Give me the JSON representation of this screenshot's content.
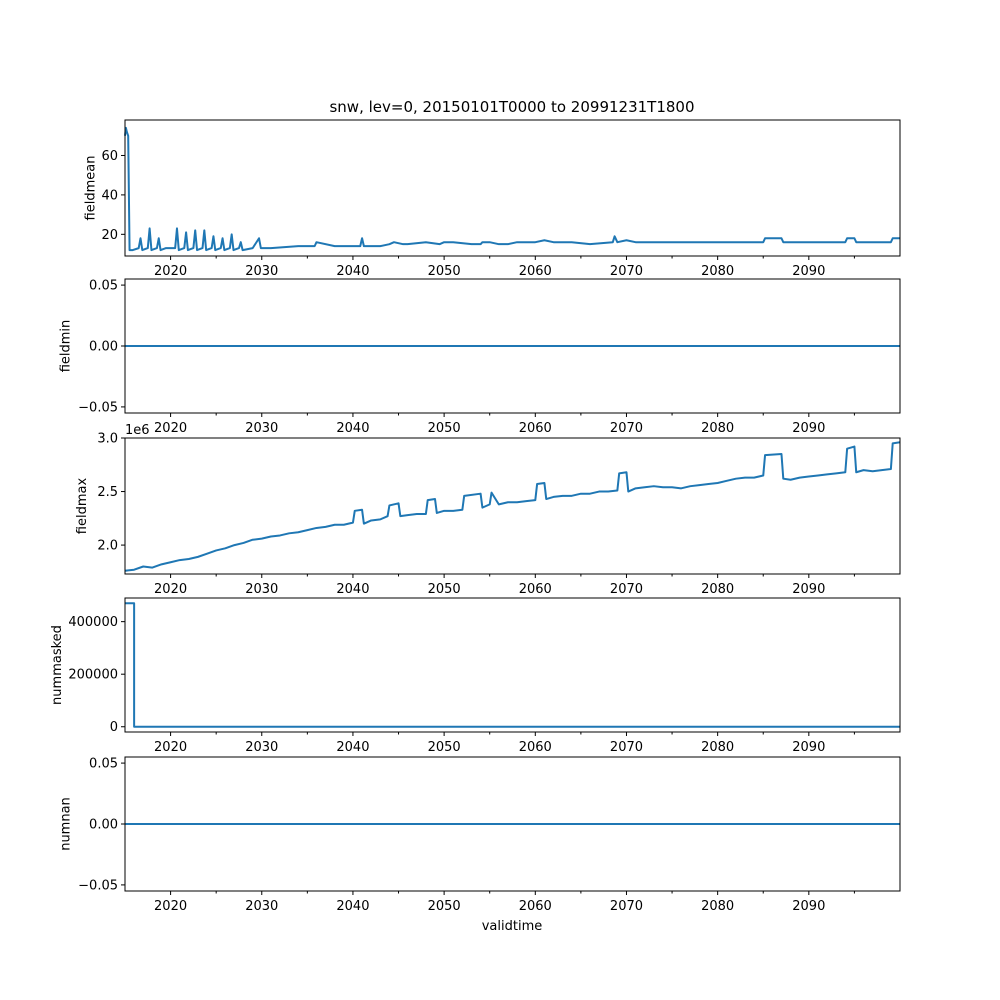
{
  "figure": {
    "title": "snw, lev=0, 20150101T0000 to 20991231T1800",
    "xlabel": "validtime"
  },
  "colors": {
    "line": "#1f77b4",
    "axes": "#000000"
  },
  "chart_data": [
    {
      "type": "line",
      "ylabel": "fieldmean",
      "xlim": [
        2015.0,
        2100.0
      ],
      "ylim": [
        9,
        78
      ],
      "xticks": [
        2020,
        2030,
        2040,
        2050,
        2060,
        2070,
        2080,
        2090
      ],
      "xticklabels": [
        "2020",
        "2030",
        "2040",
        "2050",
        "2060",
        "2070",
        "2080",
        "2090"
      ],
      "show_xticklabels": true,
      "yticks": [
        20,
        40,
        60
      ],
      "yticklabels": [
        "20",
        "40",
        "60"
      ],
      "offset_label": "",
      "x": [
        2015.0,
        2015.1,
        2015.2,
        2015.35,
        2015.5,
        2015.8,
        2015.85,
        2016.5,
        2016.7,
        2016.9,
        2017.5,
        2017.7,
        2017.9,
        2018.5,
        2018.7,
        2018.9,
        2019.5,
        2020.5,
        2020.7,
        2020.9,
        2021.5,
        2021.7,
        2021.9,
        2022.5,
        2022.7,
        2022.9,
        2023.5,
        2023.7,
        2023.9,
        2024.5,
        2024.7,
        2024.9,
        2025.5,
        2025.7,
        2025.9,
        2026.5,
        2026.7,
        2026.9,
        2027.5,
        2027.7,
        2027.9,
        2029,
        2029.7,
        2029.9,
        2031,
        2034,
        2035.8,
        2036,
        2038,
        2040.8,
        2041,
        2041.2,
        2042,
        2043,
        2044,
        2044.5,
        2045.5,
        2046,
        2048,
        2049.5,
        2050,
        2051,
        2053,
        2054,
        2054.2,
        2055,
        2056,
        2057,
        2058,
        2060,
        2061,
        2062,
        2064,
        2066,
        2068.5,
        2068.7,
        2069,
        2070,
        2071,
        2073,
        2075,
        2078,
        2082,
        2085,
        2085.2,
        2087,
        2087.2,
        2090,
        2094,
        2094.2,
        2095,
        2095.2,
        2097,
        2099,
        2099.2,
        2100
      ],
      "y": [
        70,
        74,
        72,
        70,
        12,
        12,
        12,
        13,
        18,
        12,
        13,
        23,
        12,
        13,
        18,
        12,
        13,
        13,
        23,
        12,
        13,
        21,
        12,
        13,
        22,
        12,
        13,
        22,
        12,
        13,
        19,
        12,
        13,
        18,
        12,
        13,
        20,
        12,
        13,
        16,
        12,
        13,
        18,
        13,
        13,
        14,
        14,
        16,
        14,
        14,
        18,
        14,
        14,
        14,
        15,
        16,
        15,
        15,
        16,
        15,
        16,
        16,
        15,
        15,
        16,
        16,
        15,
        15,
        16,
        16,
        17,
        16,
        16,
        15,
        16,
        19,
        16,
        17,
        16,
        16,
        16,
        16,
        16,
        16,
        18,
        18,
        16,
        16,
        16,
        18,
        18,
        16,
        16,
        16,
        18,
        18
      ]
    },
    {
      "type": "line",
      "ylabel": "fieldmin",
      "xlim": [
        2015.0,
        2100.0
      ],
      "ylim": [
        -0.055,
        0.055
      ],
      "xticks": [
        2020,
        2030,
        2040,
        2050,
        2060,
        2070,
        2080,
        2090
      ],
      "xticklabels": [
        "2020",
        "2030",
        "2040",
        "2050",
        "2060",
        "2070",
        "2080",
        "2090"
      ],
      "show_xticklabels": true,
      "yticks": [
        -0.05,
        0.0,
        0.05
      ],
      "yticklabels": [
        "−0.05",
        "0.00",
        "0.05"
      ],
      "offset_label": "",
      "x": [
        2015.0,
        2100.0
      ],
      "y": [
        0,
        0
      ]
    },
    {
      "type": "line",
      "ylabel": "fieldmax",
      "xlim": [
        2015.0,
        2100.0
      ],
      "ylim": [
        1.73,
        3.0
      ],
      "xticks": [
        2020,
        2030,
        2040,
        2050,
        2060,
        2070,
        2080,
        2090
      ],
      "xticklabels": [
        "2020",
        "2030",
        "2040",
        "2050",
        "2060",
        "2070",
        "2080",
        "2090"
      ],
      "show_xticklabels": true,
      "yticks": [
        2.0,
        2.5,
        3.0
      ],
      "yticklabels": [
        "2.0",
        "2.5",
        "3.0"
      ],
      "offset_label": "1e6",
      "x": [
        2015.0,
        2016,
        2017,
        2018,
        2019,
        2020,
        2021,
        2022,
        2023,
        2024,
        2025,
        2026,
        2027,
        2028,
        2029,
        2030,
        2031,
        2032,
        2033,
        2034,
        2035,
        2036,
        2037,
        2038,
        2039,
        2040,
        2040.2,
        2041,
        2041.2,
        2042,
        2043,
        2043.8,
        2044,
        2045,
        2045.2,
        2046,
        2047,
        2048,
        2048.2,
        2049,
        2049.2,
        2050,
        2051,
        2052,
        2052.2,
        2054,
        2054.2,
        2055,
        2055.2,
        2056,
        2057,
        2058,
        2059,
        2060,
        2060.2,
        2061,
        2061.2,
        2062,
        2063,
        2064,
        2065,
        2066,
        2067,
        2068,
        2069,
        2069.2,
        2070,
        2070.2,
        2071,
        2072,
        2073,
        2074,
        2075,
        2076,
        2077,
        2078,
        2079,
        2080,
        2081,
        2082,
        2083,
        2084,
        2085,
        2085.2,
        2087,
        2087.2,
        2088,
        2089,
        2090,
        2091,
        2092,
        2093,
        2094,
        2094.2,
        2095,
        2095.2,
        2096,
        2097,
        2098,
        2099,
        2099.2,
        2100
      ],
      "y": [
        1.76,
        1.77,
        1.8,
        1.79,
        1.82,
        1.84,
        1.86,
        1.87,
        1.89,
        1.92,
        1.95,
        1.97,
        2.0,
        2.02,
        2.05,
        2.06,
        2.08,
        2.09,
        2.11,
        2.12,
        2.14,
        2.16,
        2.17,
        2.19,
        2.19,
        2.21,
        2.32,
        2.33,
        2.2,
        2.23,
        2.24,
        2.27,
        2.37,
        2.39,
        2.27,
        2.28,
        2.29,
        2.29,
        2.42,
        2.43,
        2.3,
        2.32,
        2.32,
        2.33,
        2.46,
        2.48,
        2.35,
        2.38,
        2.49,
        2.38,
        2.4,
        2.4,
        2.41,
        2.42,
        2.57,
        2.58,
        2.43,
        2.45,
        2.46,
        2.46,
        2.48,
        2.48,
        2.5,
        2.5,
        2.51,
        2.67,
        2.68,
        2.5,
        2.53,
        2.54,
        2.55,
        2.54,
        2.54,
        2.53,
        2.55,
        2.56,
        2.57,
        2.58,
        2.6,
        2.62,
        2.63,
        2.63,
        2.65,
        2.84,
        2.85,
        2.62,
        2.61,
        2.63,
        2.64,
        2.65,
        2.66,
        2.67,
        2.68,
        2.9,
        2.92,
        2.68,
        2.7,
        2.69,
        2.7,
        2.71,
        2.95,
        2.96
      ]
    },
    {
      "type": "line",
      "ylabel": "nummasked",
      "xlim": [
        2015.0,
        2100.0
      ],
      "ylim": [
        -20000,
        490000
      ],
      "xticks": [
        2020,
        2030,
        2040,
        2050,
        2060,
        2070,
        2080,
        2090
      ],
      "xticklabels": [
        "2020",
        "2030",
        "2040",
        "2050",
        "2060",
        "2070",
        "2080",
        "2090"
      ],
      "show_xticklabels": true,
      "yticks": [
        0,
        200000,
        400000
      ],
      "yticklabels": [
        "0",
        "200000",
        "400000"
      ],
      "offset_label": "",
      "x": [
        2015.0,
        2016.0,
        2016.0,
        2100.0
      ],
      "y": [
        470000,
        470000,
        0,
        0
      ]
    },
    {
      "type": "line",
      "ylabel": "numnan",
      "xlim": [
        2015.0,
        2100.0
      ],
      "ylim": [
        -0.055,
        0.055
      ],
      "xticks": [
        2020,
        2030,
        2040,
        2050,
        2060,
        2070,
        2080,
        2090
      ],
      "xticklabels": [
        "2020",
        "2030",
        "2040",
        "2050",
        "2060",
        "2070",
        "2080",
        "2090"
      ],
      "show_xticklabels": true,
      "yticks": [
        -0.05,
        0.0,
        0.05
      ],
      "yticklabels": [
        "−0.05",
        "0.00",
        "0.05"
      ],
      "offset_label": "",
      "x": [
        2015.0,
        2100.0
      ],
      "y": [
        0,
        0
      ]
    }
  ]
}
